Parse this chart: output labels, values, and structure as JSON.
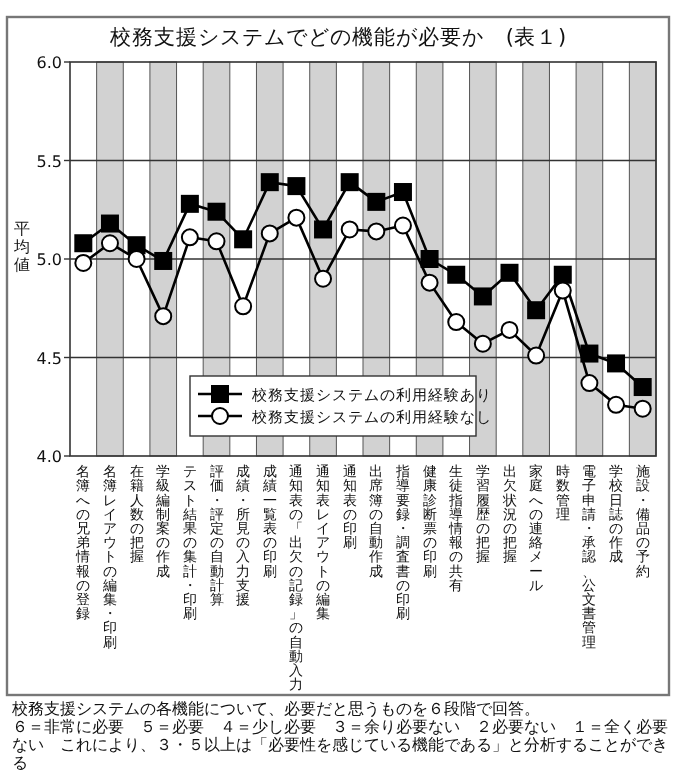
{
  "chart_data": {
    "type": "line",
    "title": "校務支援システムでどの機能が必要か　(表１)",
    "ylabel": "平均値",
    "categories": [
      "名簿への兄弟情報の登録",
      "名簿レイアウトの編集・印刷",
      "在籍人数の把握",
      "学級編制案の作成",
      "テスト結果の集計・印刷",
      "評価・評定の自動計算",
      "成績・所見の入力支援",
      "成績一覧表の印刷",
      "通知表の「出欠の記録」の自動入力",
      "通知表レイアウトの編集",
      "通知表の印刷",
      "出席簿の自動作成",
      "指導要録・調査書の印刷",
      "健康診断票の印刷",
      "生徒指導情報の共有",
      "学習履歴の把握",
      "出欠状況の把握",
      "家庭への連絡メール",
      "時数管理",
      "電子申請・承認、公文書管理",
      "学校日誌の作成",
      "施設・備品の予約"
    ],
    "series": [
      {
        "name": "校務支援システムの利用経験あり",
        "color": "#000000",
        "marker": "square",
        "values": [
          5.08,
          5.18,
          5.07,
          4.99,
          5.28,
          5.24,
          5.1,
          5.39,
          5.37,
          5.15,
          5.39,
          5.29,
          5.34,
          5.0,
          4.92,
          4.81,
          4.93,
          4.74,
          4.92,
          4.52,
          4.47,
          4.35
        ]
      },
      {
        "name": "校務支援システムの利用経験なし",
        "color": "#000000",
        "marker": "circle",
        "values": [
          4.98,
          5.08,
          5.0,
          4.71,
          5.11,
          5.09,
          4.76,
          5.13,
          5.21,
          4.9,
          5.15,
          5.14,
          5.17,
          4.88,
          4.68,
          4.57,
          4.64,
          4.51,
          4.84,
          4.37,
          4.26,
          4.24
        ]
      }
    ],
    "ylim": [
      4,
      6
    ],
    "yticks": [
      {
        "value": 4,
        "label": "4.0"
      },
      {
        "value": 4.5,
        "label": "4.5"
      },
      {
        "value": 5,
        "label": "5.0"
      },
      {
        "value": 5.5,
        "label": "5.5"
      },
      {
        "value": 6,
        "label": "6.0"
      }
    ],
    "grid": "y",
    "legend": "bottom",
    "line_style": "solid",
    "bands": [
      {
        "axis": "x",
        "from": "名簿レイアウトの編集・印刷",
        "to": "名簿レイアウトの編集・印刷",
        "color": "#d2d2d2"
      },
      {
        "axis": "x",
        "from": "学級編制案の作成",
        "to": "学級編制案の作成",
        "color": "#d2d2d2"
      },
      {
        "axis": "x",
        "from": "評価・評定の自動計算",
        "to": "評価・評定の自動計算",
        "color": "#d2d2d2"
      },
      {
        "axis": "x",
        "from": "成績一覧表の印刷",
        "to": "成績一覧表の印刷",
        "color": "#d2d2d2"
      },
      {
        "axis": "x",
        "from": "通知表レイアウトの編集",
        "to": "通知表レイアウトの編集",
        "color": "#d2d2d2"
      },
      {
        "axis": "x",
        "from": "出席簿の自動作成",
        "to": "出席簿の自動作成",
        "color": "#d2d2d2"
      },
      {
        "axis": "x",
        "from": "健康診断票の印刷",
        "to": "健康診断票の印刷",
        "color": "#d2d2d2"
      },
      {
        "axis": "x",
        "from": "学習履歴の把握",
        "to": "学習履歴の把握",
        "color": "#d2d2d2"
      },
      {
        "axis": "x",
        "from": "家庭への連絡メール",
        "to": "家庭への連絡メール",
        "color": "#d2d2d2"
      },
      {
        "axis": "x",
        "from": "電子申請・承認、公文書管理",
        "to": "電子申請・承認、公文書管理",
        "color": "#d2d2d2"
      },
      {
        "axis": "x",
        "from": "施設・備品の予約",
        "to": "施設・備品の予約",
        "color": "#d2d2d2"
      }
    ],
    "annotations": [
      "校務支援システムの各機能について、必要だと思うものを６段階で回答。",
      "６＝非常に必要　５＝必要　４＝少し必要　３＝余り必要ない　２必要ない　１＝全く必要ない　これにより、３・５以上は「必要性を感じている機能である」と分析することができる"
    ]
  }
}
